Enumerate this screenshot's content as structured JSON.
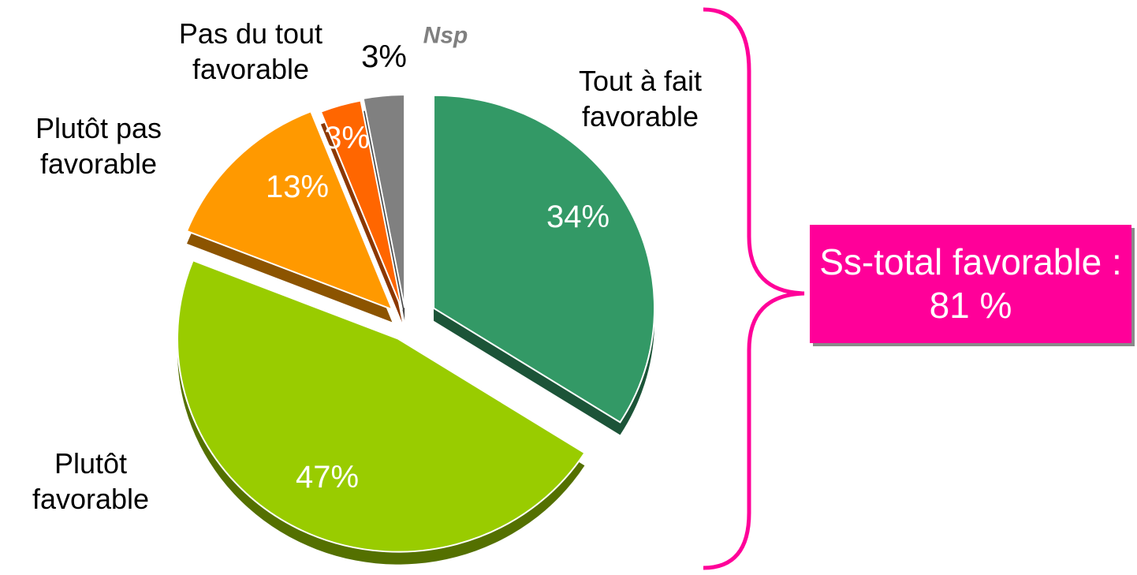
{
  "chart_data": {
    "type": "pie",
    "categories": [
      "Tout à fait favorable",
      "Plutôt favorable",
      "Plutôt pas favorable",
      "Pas du tout favorable",
      "Nsp"
    ],
    "values": [
      34,
      47,
      13,
      3,
      3
    ],
    "value_labels": [
      "34%",
      "47%",
      "13%",
      "3%",
      "3%"
    ],
    "colors": [
      "#339966",
      "#99cc00",
      "#ff9900",
      "#ff6600",
      "#808080"
    ],
    "annotation": "Ss-total favorable : 81 %"
  }
}
